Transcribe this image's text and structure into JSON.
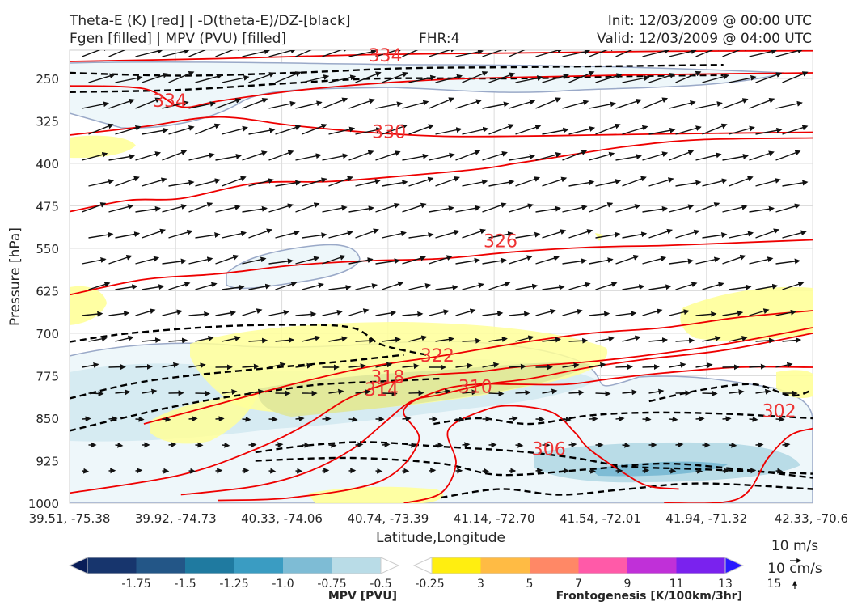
{
  "header": {
    "title_left_1": "Theta-E (K) [red] | -D(theta-E)/DZ-[black]",
    "title_left_2": "Fgen [filled] | MPV (PVU) [filled]",
    "fhr": "FHR:4",
    "init": "Init: 12/03/2009 @ 00:00 UTC",
    "valid": "Valid: 12/03/2009 @ 04:00 UTC"
  },
  "chart_data": {
    "type": "contour",
    "xlabel": "Latitude,Longitude",
    "ylabel": "Pressure [hPa]",
    "x_ticks": [
      "39.51, -75.38",
      "39.92, -74.73",
      "40.33, -74.06",
      "40.74, -73.39",
      "41.14, -72.70",
      "41.54, -72.01",
      "41.94, -71.32",
      "42.33, -70.6"
    ],
    "y_ticks": [
      250,
      325,
      400,
      475,
      550,
      625,
      700,
      775,
      850,
      925,
      1000
    ],
    "ylim": [
      1000,
      200
    ],
    "y_axis": "inverted pressure",
    "contour_labels": [
      {
        "text": "334",
        "x": 0.425,
        "p": 210
      },
      {
        "text": "334",
        "x": 0.135,
        "p": 290
      },
      {
        "text": "330",
        "x": 0.43,
        "p": 345
      },
      {
        "text": "326",
        "x": 0.58,
        "p": 538
      },
      {
        "text": "322",
        "x": 0.495,
        "p": 740
      },
      {
        "text": "318",
        "x": 0.428,
        "p": 778
      },
      {
        "text": "314",
        "x": 0.42,
        "p": 800
      },
      {
        "text": "310",
        "x": 0.546,
        "p": 795
      },
      {
        "text": "306",
        "x": 0.645,
        "p": 905
      },
      {
        "text": "302",
        "x": 0.955,
        "p": 838
      }
    ],
    "theta_e_contours": [
      {
        "level": 334,
        "points": [
          [
            0,
            220
          ],
          [
            0.2,
            215
          ],
          [
            0.4,
            208
          ],
          [
            0.6,
            205
          ],
          [
            0.8,
            202
          ],
          [
            1,
            201
          ]
        ]
      },
      {
        "level": 334,
        "points": [
          [
            0,
            263
          ],
          [
            0.1,
            268
          ],
          [
            0.15,
            300
          ],
          [
            0.2,
            290
          ],
          [
            0.3,
            272
          ],
          [
            0.4,
            260
          ],
          [
            0.5,
            252
          ],
          [
            0.6,
            248
          ],
          [
            0.8,
            243
          ],
          [
            1,
            240
          ]
        ]
      },
      {
        "level": 330,
        "points": [
          [
            0,
            350
          ],
          [
            0.1,
            335
          ],
          [
            0.2,
            318
          ],
          [
            0.3,
            333
          ],
          [
            0.4,
            345
          ],
          [
            0.5,
            352
          ],
          [
            0.6,
            352
          ],
          [
            0.7,
            350
          ],
          [
            0.8,
            348
          ],
          [
            1,
            345
          ]
        ]
      },
      {
        "level": 326,
        "points": [
          [
            0,
            485
          ],
          [
            0.08,
            465
          ],
          [
            0.15,
            462
          ],
          [
            0.25,
            435
          ],
          [
            0.35,
            432
          ],
          [
            0.45,
            422
          ],
          [
            0.55,
            410
          ],
          [
            0.6,
            400
          ],
          [
            0.65,
            390
          ],
          [
            0.75,
            370
          ],
          [
            0.85,
            358
          ],
          [
            1,
            355
          ]
        ]
      },
      {
        "level": 326,
        "points": [
          [
            0,
            632
          ],
          [
            0.1,
            605
          ],
          [
            0.2,
            595
          ],
          [
            0.3,
            580
          ],
          [
            0.4,
            572
          ],
          [
            0.5,
            568
          ],
          [
            0.6,
            556
          ],
          [
            0.7,
            548
          ],
          [
            0.8,
            545
          ],
          [
            0.9,
            540
          ],
          [
            1,
            535
          ]
        ]
      },
      {
        "level": 322,
        "points": [
          [
            0.1,
            860
          ],
          [
            0.2,
            825
          ],
          [
            0.3,
            790
          ],
          [
            0.4,
            760
          ],
          [
            0.5,
            740
          ],
          [
            0.6,
            718
          ],
          [
            0.7,
            700
          ],
          [
            0.8,
            690
          ],
          [
            0.9,
            672
          ],
          [
            1,
            660
          ]
        ]
      },
      {
        "level": 318,
        "points": [
          [
            0,
            982
          ],
          [
            0.15,
            950
          ],
          [
            0.25,
            905
          ],
          [
            0.32,
            860
          ],
          [
            0.38,
            812
          ],
          [
            0.46,
            778
          ],
          [
            0.55,
            768
          ],
          [
            0.6,
            760
          ],
          [
            0.7,
            750
          ],
          [
            0.8,
            735
          ],
          [
            0.9,
            715
          ],
          [
            1,
            690
          ]
        ]
      },
      {
        "level": 314,
        "points": [
          [
            0.15,
            985
          ],
          [
            0.25,
            970
          ],
          [
            0.32,
            945
          ],
          [
            0.38,
            905
          ],
          [
            0.42,
            862
          ],
          [
            0.46,
            820
          ],
          [
            0.5,
            808
          ],
          [
            0.56,
            790
          ],
          [
            0.62,
            780
          ],
          [
            0.7,
            760
          ],
          [
            0.78,
            745
          ],
          [
            0.88,
            730
          ],
          [
            1,
            700
          ]
        ]
      },
      {
        "level": 310,
        "points": [
          [
            0.2,
            995
          ],
          [
            0.3,
            990
          ],
          [
            0.42,
            960
          ],
          [
            0.47,
            890
          ],
          [
            0.45,
            835
          ],
          [
            0.5,
            800
          ],
          [
            0.55,
            790
          ],
          [
            0.6,
            790
          ],
          [
            0.67,
            790
          ],
          [
            0.73,
            780
          ],
          [
            0.8,
            770
          ],
          [
            0.9,
            760
          ],
          [
            1,
            760
          ]
        ]
      },
      {
        "level": 306,
        "points": [
          [
            0.45,
            1000
          ],
          [
            0.5,
            982
          ],
          [
            0.52,
            930
          ],
          [
            0.51,
            870
          ],
          [
            0.56,
            835
          ],
          [
            0.6,
            828
          ],
          [
            0.65,
            840
          ],
          [
            0.68,
            875
          ],
          [
            0.7,
            905
          ],
          [
            0.75,
            950
          ],
          [
            0.78,
            970
          ],
          [
            0.82,
            975
          ]
        ]
      },
      {
        "level": 302,
        "points": [
          [
            0.8,
            1000
          ],
          [
            0.9,
            992
          ],
          [
            0.94,
            920
          ],
          [
            0.97,
            880
          ],
          [
            1,
            868
          ]
        ]
      }
    ],
    "dthetae_dz_contours": [
      {
        "points": [
          [
            0,
            240
          ],
          [
            0.15,
            245
          ],
          [
            0.3,
            240
          ],
          [
            0.45,
            232
          ],
          [
            0.6,
            230
          ],
          [
            0.75,
            228
          ],
          [
            0.88,
            226
          ]
        ]
      },
      {
        "points": [
          [
            0,
            274
          ],
          [
            0.15,
            270
          ],
          [
            0.3,
            258
          ],
          [
            0.42,
            250
          ],
          [
            0.6,
            250
          ],
          [
            0.75,
            246
          ],
          [
            0.88,
            244
          ]
        ]
      },
      {
        "points": [
          [
            0,
            715
          ],
          [
            0.08,
            700
          ],
          [
            0.2,
            688
          ],
          [
            0.3,
            685
          ],
          [
            0.38,
            690
          ],
          [
            0.42,
            720
          ],
          [
            0.48,
            738
          ]
        ]
      },
      {
        "points": [
          [
            0,
            815
          ],
          [
            0.08,
            790
          ],
          [
            0.16,
            775
          ],
          [
            0.28,
            760
          ],
          [
            0.38,
            748
          ],
          [
            0.45,
            738
          ]
        ]
      },
      {
        "points": [
          [
            0,
            872
          ],
          [
            0.12,
            835
          ],
          [
            0.2,
            815
          ],
          [
            0.28,
            800
          ],
          [
            0.34,
            790
          ],
          [
            0.42,
            785
          ],
          [
            0.5,
            780
          ]
        ]
      },
      {
        "points": [
          [
            0.25,
            910
          ],
          [
            0.32,
            898
          ],
          [
            0.4,
            892
          ],
          [
            0.5,
            900
          ],
          [
            0.6,
            908
          ],
          [
            0.68,
            920
          ],
          [
            0.75,
            935
          ],
          [
            0.85,
            940
          ],
          [
            1,
            948
          ]
        ]
      },
      {
        "points": [
          [
            0.25,
            925
          ],
          [
            0.38,
            920
          ],
          [
            0.5,
            930
          ],
          [
            0.58,
            950
          ],
          [
            0.7,
            940
          ],
          [
            0.8,
            930
          ],
          [
            0.9,
            940
          ],
          [
            1,
            955
          ]
        ]
      },
      {
        "points": [
          [
            0.5,
            990
          ],
          [
            0.58,
            975
          ],
          [
            0.66,
            985
          ],
          [
            0.75,
            975
          ],
          [
            0.85,
            965
          ],
          [
            1,
            975
          ]
        ]
      },
      {
        "points": [
          [
            0.49,
            860
          ],
          [
            0.55,
            850
          ],
          [
            0.62,
            860
          ],
          [
            0.7,
            845
          ],
          [
            0.78,
            840
          ],
          [
            0.88,
            842
          ],
          [
            1,
            850
          ]
        ]
      },
      {
        "points": [
          [
            0.78,
            820
          ],
          [
            0.85,
            800
          ],
          [
            0.92,
            790
          ],
          [
            0.97,
            810
          ],
          [
            1,
            800
          ]
        ]
      }
    ],
    "mpv_colorbar": {
      "label": "MPV [PVU]",
      "ticks": [
        "-1.75",
        "-1.5",
        "-1.25",
        "-1.0",
        "-0.75",
        "-0.5",
        "-0.25"
      ],
      "colors": [
        "#081d58",
        "#17356d",
        "#235687",
        "#1f7aa0",
        "#3a9cc2",
        "#7ebcd5",
        "#b9dce7",
        "#ffffff"
      ]
    },
    "fgen_colorbar": {
      "label": "Frontogenesis [K/100km/3hr]",
      "ticks": [
        "3",
        "5",
        "7",
        "9",
        "11",
        "13",
        "15"
      ],
      "colors": [
        "#ffffff",
        "#ffee10",
        "#ffbb44",
        "#ff8866",
        "#ff5aa8",
        "#c030d8",
        "#7a22ee",
        "#2a1aff"
      ]
    },
    "wind_reference": {
      "horizontal": "10 m/s",
      "vertical": "10 cm/s"
    }
  }
}
